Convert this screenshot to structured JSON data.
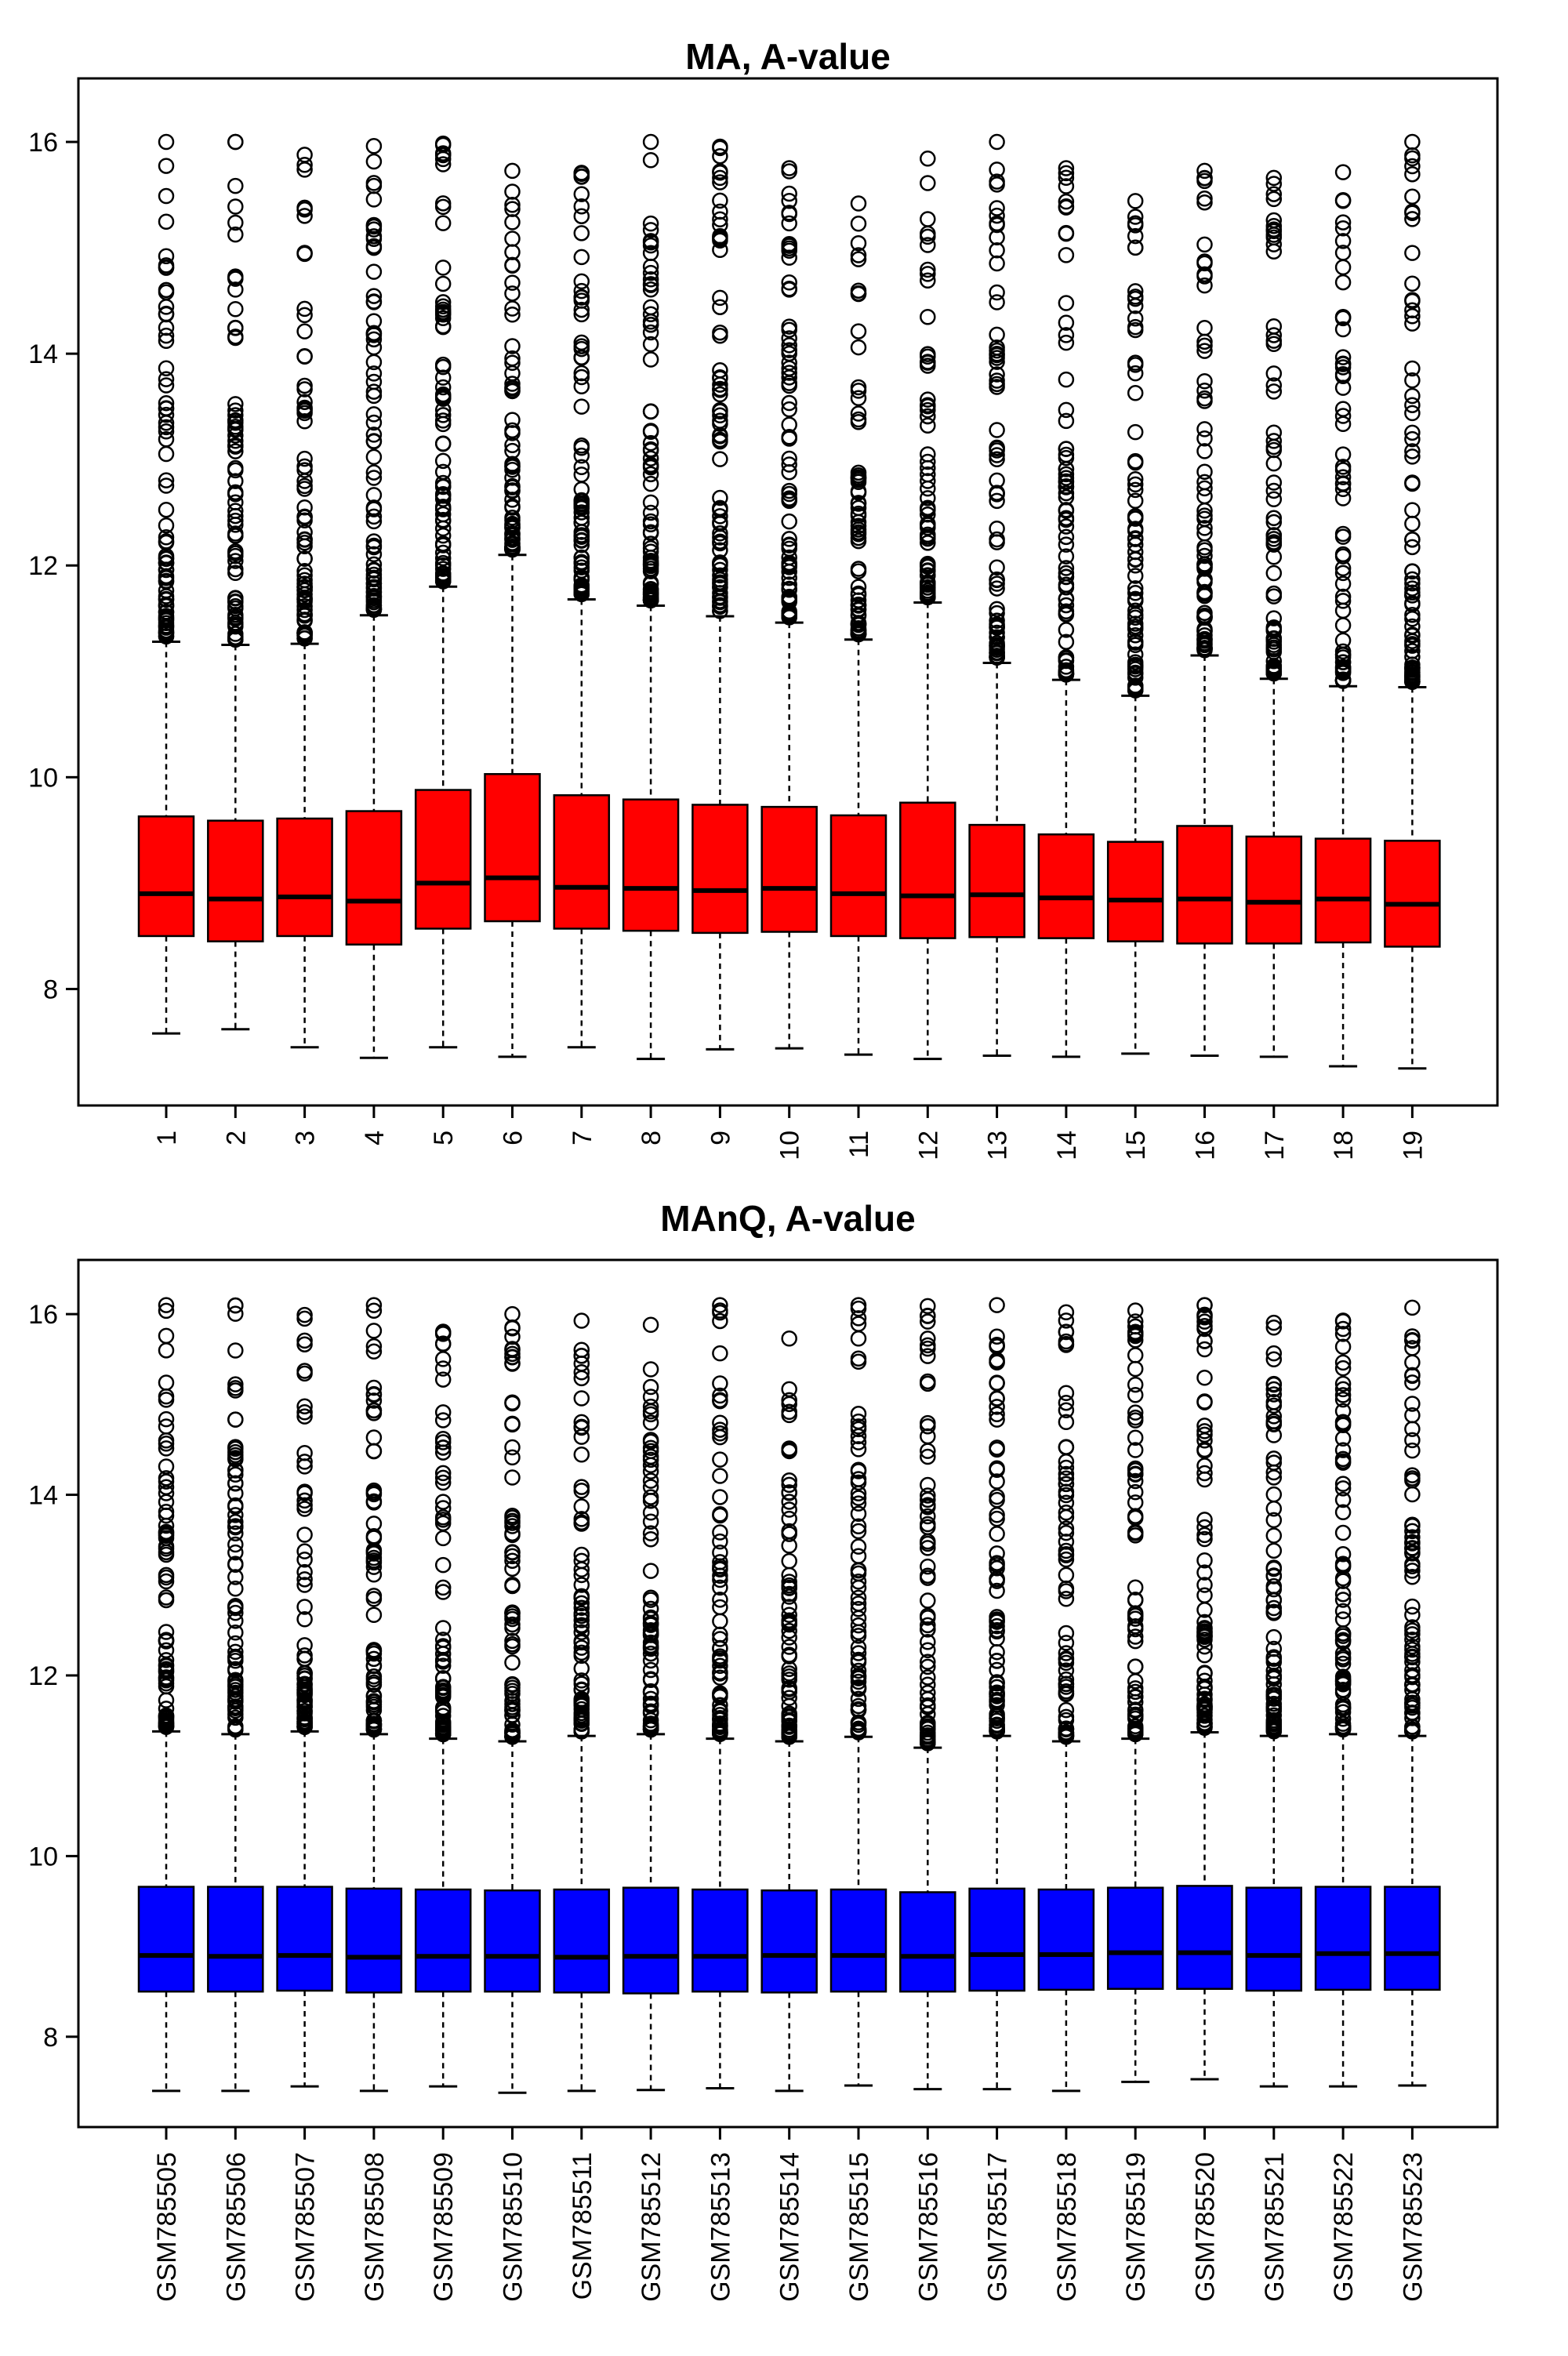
{
  "chart_data": [
    {
      "type": "boxplot",
      "title": "MA, A-value",
      "xlabel": "",
      "ylabel": "",
      "ylim": [
        6.9,
        16.6
      ],
      "yticks": [
        8,
        10,
        12,
        14,
        16
      ],
      "categories": [
        "1",
        "2",
        "3",
        "4",
        "5",
        "6",
        "7",
        "8",
        "9",
        "10",
        "11",
        "12",
        "13",
        "14",
        "15",
        "16",
        "17",
        "18",
        "19"
      ],
      "box_color": "#ff0000",
      "outlier_max": 16.0,
      "boxes": [
        {
          "whisker_low": 7.58,
          "q1": 8.5,
          "median": 8.9,
          "q3": 9.63,
          "whisker_high": 11.28
        },
        {
          "whisker_low": 7.62,
          "q1": 8.45,
          "median": 8.85,
          "q3": 9.59,
          "whisker_high": 11.25
        },
        {
          "whisker_low": 7.45,
          "q1": 8.5,
          "median": 8.87,
          "q3": 9.61,
          "whisker_high": 11.26
        },
        {
          "whisker_low": 7.35,
          "q1": 8.42,
          "median": 8.83,
          "q3": 9.68,
          "whisker_high": 11.53
        },
        {
          "whisker_low": 7.45,
          "q1": 8.57,
          "median": 9.0,
          "q3": 9.88,
          "whisker_high": 11.8
        },
        {
          "whisker_low": 7.36,
          "q1": 8.64,
          "median": 9.05,
          "q3": 10.03,
          "whisker_high": 12.1
        },
        {
          "whisker_low": 7.45,
          "q1": 8.57,
          "median": 8.96,
          "q3": 9.83,
          "whisker_high": 11.68
        },
        {
          "whisker_low": 7.34,
          "q1": 8.55,
          "median": 8.95,
          "q3": 9.79,
          "whisker_high": 11.62
        },
        {
          "whisker_low": 7.43,
          "q1": 8.53,
          "median": 8.93,
          "q3": 9.74,
          "whisker_high": 11.52
        },
        {
          "whisker_low": 7.44,
          "q1": 8.54,
          "median": 8.95,
          "q3": 9.72,
          "whisker_high": 11.46
        },
        {
          "whisker_low": 7.38,
          "q1": 8.5,
          "median": 8.9,
          "q3": 9.64,
          "whisker_high": 11.3
        },
        {
          "whisker_low": 7.34,
          "q1": 8.48,
          "median": 8.88,
          "q3": 9.76,
          "whisker_high": 11.65
        },
        {
          "whisker_low": 7.37,
          "q1": 8.49,
          "median": 8.89,
          "q3": 9.55,
          "whisker_high": 11.08
        },
        {
          "whisker_low": 7.36,
          "q1": 8.48,
          "median": 8.86,
          "q3": 9.46,
          "whisker_high": 10.92
        },
        {
          "whisker_low": 7.39,
          "q1": 8.45,
          "median": 8.84,
          "q3": 9.39,
          "whisker_high": 10.77
        },
        {
          "whisker_low": 7.37,
          "q1": 8.43,
          "median": 8.85,
          "q3": 9.54,
          "whisker_high": 11.15
        },
        {
          "whisker_low": 7.36,
          "q1": 8.43,
          "median": 8.82,
          "q3": 9.44,
          "whisker_high": 10.93
        },
        {
          "whisker_low": 7.27,
          "q1": 8.44,
          "median": 8.85,
          "q3": 9.42,
          "whisker_high": 10.86
        },
        {
          "whisker_low": 7.25,
          "q1": 8.4,
          "median": 8.8,
          "q3": 9.4,
          "whisker_high": 10.85
        }
      ]
    },
    {
      "type": "boxplot",
      "title": "MAnQ, A-value",
      "xlabel": "",
      "ylabel": "",
      "ylim": [
        7.0,
        16.6
      ],
      "yticks": [
        8,
        10,
        12,
        14,
        16
      ],
      "categories": [
        "GSM785505",
        "GSM785506",
        "GSM785507",
        "GSM785508",
        "GSM785509",
        "GSM785510",
        "GSM785511",
        "GSM785512",
        "GSM785513",
        "GSM785514",
        "GSM785515",
        "GSM785516",
        "GSM785517",
        "GSM785518",
        "GSM785519",
        "GSM785520",
        "GSM785521",
        "GSM785522",
        "GSM785523"
      ],
      "box_color": "#0000ff",
      "outlier_max": 16.1,
      "boxes": [
        {
          "whisker_low": 7.4,
          "q1": 8.5,
          "median": 8.9,
          "q3": 9.66,
          "whisker_high": 11.38
        },
        {
          "whisker_low": 7.4,
          "q1": 8.5,
          "median": 8.89,
          "q3": 9.66,
          "whisker_high": 11.35
        },
        {
          "whisker_low": 7.45,
          "q1": 8.51,
          "median": 8.9,
          "q3": 9.66,
          "whisker_high": 11.38
        },
        {
          "whisker_low": 7.4,
          "q1": 8.49,
          "median": 8.88,
          "q3": 9.64,
          "whisker_high": 11.35
        },
        {
          "whisker_low": 7.45,
          "q1": 8.5,
          "median": 8.89,
          "q3": 9.63,
          "whisker_high": 11.3
        },
        {
          "whisker_low": 7.38,
          "q1": 8.5,
          "median": 8.89,
          "q3": 9.62,
          "whisker_high": 11.27
        },
        {
          "whisker_low": 7.4,
          "q1": 8.49,
          "median": 8.88,
          "q3": 9.63,
          "whisker_high": 11.33
        },
        {
          "whisker_low": 7.41,
          "q1": 8.48,
          "median": 8.89,
          "q3": 9.65,
          "whisker_high": 11.35
        },
        {
          "whisker_low": 7.43,
          "q1": 8.5,
          "median": 8.89,
          "q3": 9.63,
          "whisker_high": 11.3
        },
        {
          "whisker_low": 7.4,
          "q1": 8.49,
          "median": 8.9,
          "q3": 9.62,
          "whisker_high": 11.27
        },
        {
          "whisker_low": 7.46,
          "q1": 8.5,
          "median": 8.9,
          "q3": 9.63,
          "whisker_high": 11.32
        },
        {
          "whisker_low": 7.42,
          "q1": 8.5,
          "median": 8.89,
          "q3": 9.6,
          "whisker_high": 11.2
        },
        {
          "whisker_low": 7.42,
          "q1": 8.51,
          "median": 8.91,
          "q3": 9.64,
          "whisker_high": 11.33
        },
        {
          "whisker_low": 7.4,
          "q1": 8.52,
          "median": 8.91,
          "q3": 9.63,
          "whisker_high": 11.27
        },
        {
          "whisker_low": 7.5,
          "q1": 8.53,
          "median": 8.93,
          "q3": 9.65,
          "whisker_high": 11.3
        },
        {
          "whisker_low": 7.53,
          "q1": 8.53,
          "median": 8.93,
          "q3": 9.67,
          "whisker_high": 11.37
        },
        {
          "whisker_low": 7.45,
          "q1": 8.51,
          "median": 8.9,
          "q3": 9.65,
          "whisker_high": 11.33
        },
        {
          "whisker_low": 7.45,
          "q1": 8.52,
          "median": 8.92,
          "q3": 9.66,
          "whisker_high": 11.35
        },
        {
          "whisker_low": 7.46,
          "q1": 8.52,
          "median": 8.92,
          "q3": 9.66,
          "whisker_high": 11.33
        }
      ]
    }
  ]
}
